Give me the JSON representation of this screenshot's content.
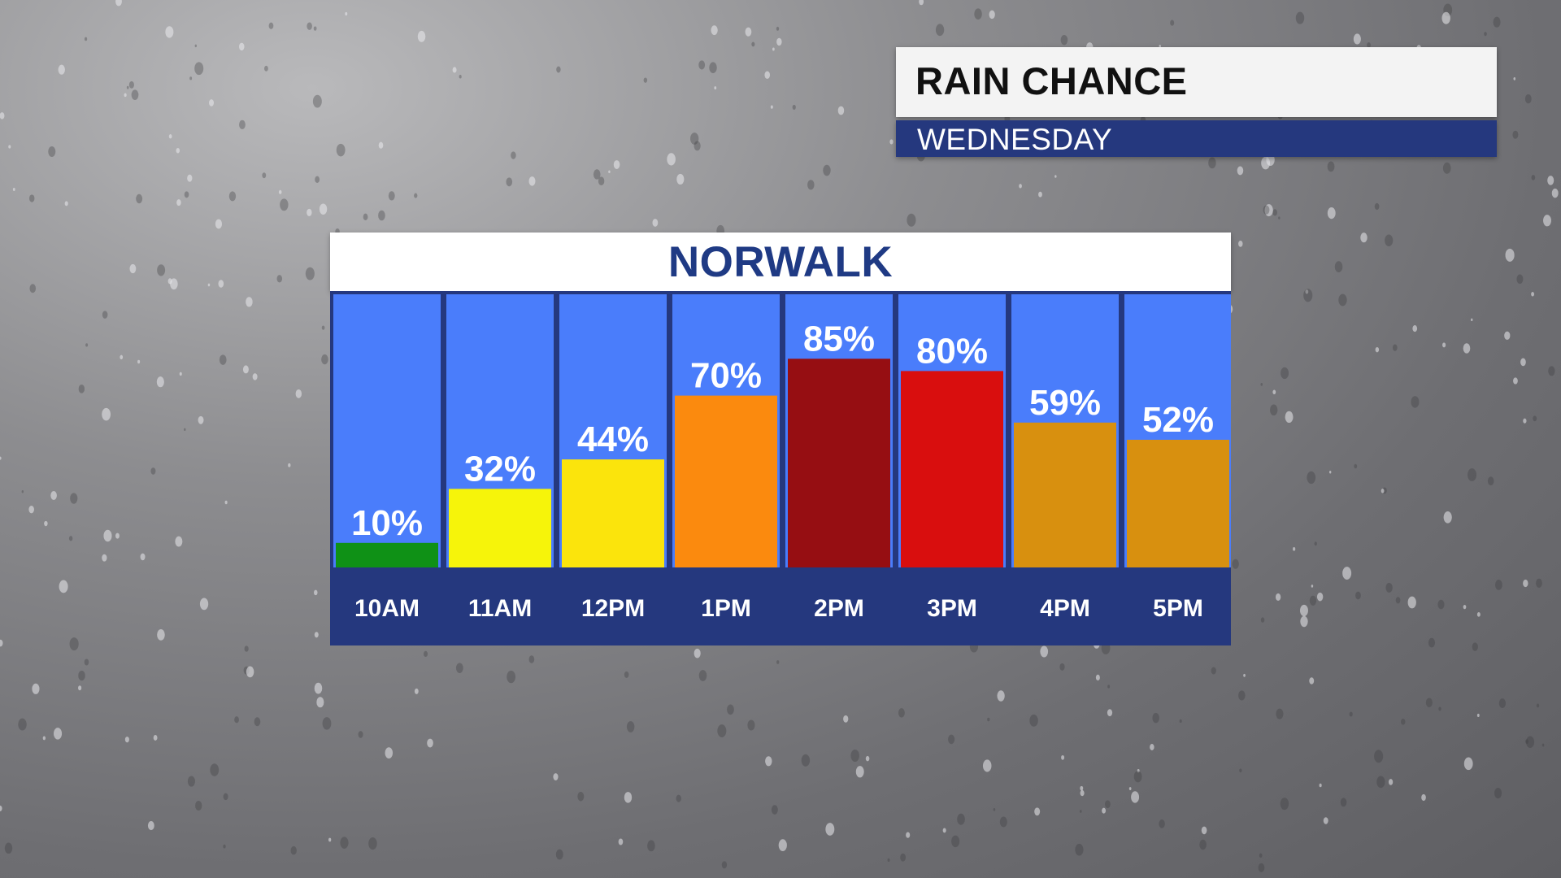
{
  "header": {
    "title": "RAIN CHANCE",
    "subtitle": "WEDNESDAY"
  },
  "location": "NORWALK",
  "chart_data": {
    "type": "bar",
    "title": "RAIN CHANCE",
    "subtitle": "WEDNESDAY",
    "categories": [
      "10AM",
      "11AM",
      "12PM",
      "1PM",
      "2PM",
      "3PM",
      "4PM",
      "5PM"
    ],
    "values": [
      10,
      32,
      44,
      70,
      85,
      80,
      59,
      52
    ],
    "value_labels": [
      "10%",
      "32%",
      "44%",
      "70%",
      "85%",
      "80%",
      "59%",
      "52%"
    ],
    "ylim": [
      0,
      100
    ],
    "grid": false,
    "legend": "none",
    "bar_colors": [
      "#0f9116",
      "#f6f40a",
      "#fbe40c",
      "#fb8a0e",
      "#960e12",
      "#d90e0e",
      "#d8900f",
      "#d8900f"
    ]
  },
  "colors": {
    "column_background": "#4a7dfb",
    "label_band": "#25387e",
    "frame": "#25387e",
    "location_text": "#1f3a84"
  }
}
